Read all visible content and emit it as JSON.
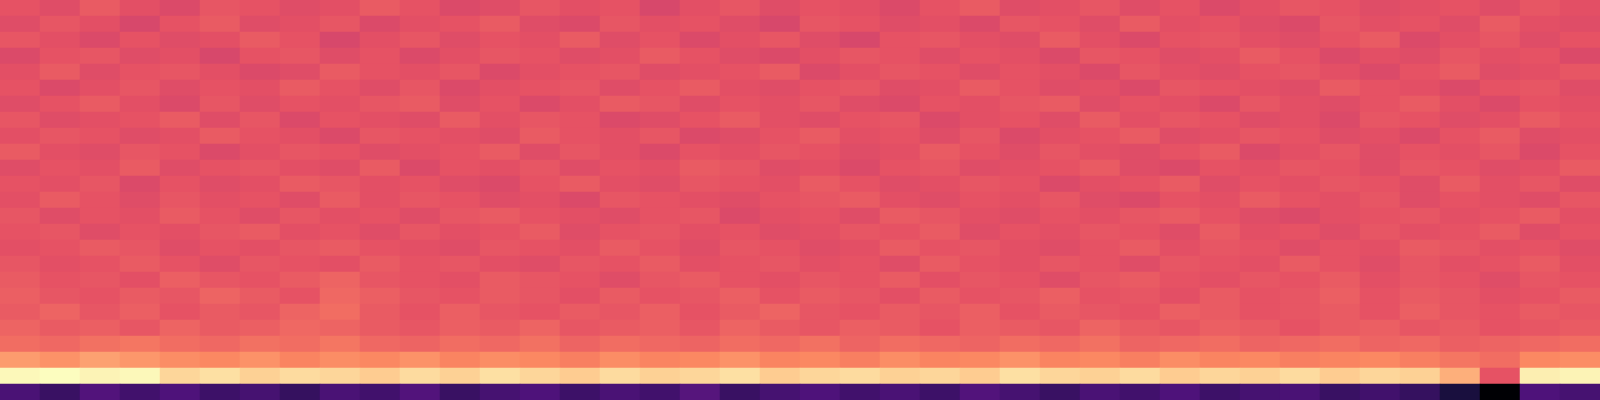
{
  "chart_data": {
    "type": "heatmap",
    "tick_labels": false,
    "cells": [
      [
        0.62,
        0.6,
        0.64,
        0.61,
        0.59,
        0.63,
        0.62,
        0.6,
        0.61,
        0.64,
        0.62,
        0.59,
        0.6,
        0.63,
        0.61,
        0.62,
        0.58,
        0.61,
        0.63,
        0.6,
        0.62,
        0.61,
        0.59,
        0.62,
        0.64,
        0.6,
        0.61,
        0.63,
        0.6,
        0.62,
        0.59,
        0.61,
        0.63,
        0.62,
        0.6,
        0.61,
        0.62,
        0.6,
        0.63,
        0.61
      ],
      [
        0.6,
        0.63,
        0.61,
        0.58,
        0.62,
        0.64,
        0.6,
        0.61,
        0.63,
        0.59,
        0.61,
        0.62,
        0.64,
        0.6,
        0.59,
        0.63,
        0.61,
        0.62,
        0.6,
        0.58,
        0.63,
        0.62,
        0.6,
        0.61,
        0.59,
        0.63,
        0.62,
        0.6,
        0.64,
        0.61,
        0.62,
        0.6,
        0.59,
        0.63,
        0.61,
        0.62,
        0.6,
        0.64,
        0.61,
        0.6
      ],
      [
        0.63,
        0.61,
        0.59,
        0.62,
        0.6,
        0.61,
        0.64,
        0.62,
        0.58,
        0.61,
        0.63,
        0.6,
        0.62,
        0.61,
        0.64,
        0.6,
        0.62,
        0.59,
        0.61,
        0.63,
        0.6,
        0.58,
        0.62,
        0.63,
        0.61,
        0.6,
        0.64,
        0.61,
        0.59,
        0.62,
        0.63,
        0.61,
        0.6,
        0.62,
        0.64,
        0.59,
        0.61,
        0.63,
        0.6,
        0.62
      ],
      [
        0.59,
        0.62,
        0.63,
        0.6,
        0.61,
        0.58,
        0.62,
        0.63,
        0.6,
        0.62,
        0.59,
        0.61,
        0.63,
        0.62,
        0.6,
        0.61,
        0.64,
        0.62,
        0.6,
        0.59,
        0.61,
        0.63,
        0.62,
        0.6,
        0.62,
        0.61,
        0.59,
        0.63,
        0.62,
        0.6,
        0.61,
        0.64,
        0.62,
        0.59,
        0.61,
        0.6,
        0.63,
        0.61,
        0.62,
        0.59
      ],
      [
        0.61,
        0.64,
        0.6,
        0.62,
        0.63,
        0.61,
        0.59,
        0.6,
        0.64,
        0.62,
        0.61,
        0.63,
        0.59,
        0.61,
        0.62,
        0.63,
        0.6,
        0.61,
        0.62,
        0.64,
        0.59,
        0.61,
        0.63,
        0.62,
        0.6,
        0.62,
        0.61,
        0.59,
        0.63,
        0.61,
        0.6,
        0.62,
        0.63,
        0.61,
        0.59,
        0.62,
        0.64,
        0.6,
        0.61,
        0.63
      ],
      [
        0.62,
        0.59,
        0.61,
        0.63,
        0.6,
        0.62,
        0.61,
        0.64,
        0.62,
        0.6,
        0.63,
        0.59,
        0.61,
        0.62,
        0.63,
        0.6,
        0.62,
        0.64,
        0.61,
        0.6,
        0.62,
        0.63,
        0.6,
        0.61,
        0.64,
        0.62,
        0.6,
        0.61,
        0.59,
        0.63,
        0.62,
        0.61,
        0.6,
        0.64,
        0.62,
        0.61,
        0.59,
        0.62,
        0.63,
        0.6
      ],
      [
        0.6,
        0.62,
        0.64,
        0.61,
        0.59,
        0.63,
        0.6,
        0.62,
        0.61,
        0.63,
        0.64,
        0.6,
        0.62,
        0.59,
        0.61,
        0.64,
        0.63,
        0.6,
        0.62,
        0.61,
        0.63,
        0.6,
        0.59,
        0.62,
        0.61,
        0.63,
        0.64,
        0.6,
        0.62,
        0.61,
        0.59,
        0.63,
        0.61,
        0.6,
        0.62,
        0.64,
        0.61,
        0.59,
        0.62,
        0.61
      ],
      [
        0.63,
        0.6,
        0.61,
        0.62,
        0.64,
        0.6,
        0.63,
        0.59,
        0.62,
        0.61,
        0.6,
        0.64,
        0.61,
        0.63,
        0.62,
        0.59,
        0.6,
        0.62,
        0.64,
        0.61,
        0.6,
        0.62,
        0.63,
        0.59,
        0.61,
        0.62,
        0.6,
        0.64,
        0.61,
        0.63,
        0.62,
        0.6,
        0.61,
        0.59,
        0.63,
        0.62,
        0.6,
        0.61,
        0.64,
        0.62
      ],
      [
        0.61,
        0.63,
        0.62,
        0.6,
        0.61,
        0.64,
        0.62,
        0.61,
        0.59,
        0.63,
        0.62,
        0.61,
        0.6,
        0.64,
        0.62,
        0.61,
        0.63,
        0.59,
        0.6,
        0.62,
        0.64,
        0.61,
        0.62,
        0.6,
        0.63,
        0.59,
        0.61,
        0.62,
        0.64,
        0.6,
        0.61,
        0.63,
        0.62,
        0.6,
        0.61,
        0.59,
        0.62,
        0.64,
        0.6,
        0.61
      ],
      [
        0.64,
        0.61,
        0.6,
        0.63,
        0.62,
        0.59,
        0.61,
        0.63,
        0.62,
        0.6,
        0.61,
        0.62,
        0.64,
        0.6,
        0.63,
        0.61,
        0.59,
        0.62,
        0.61,
        0.63,
        0.62,
        0.6,
        0.61,
        0.64,
        0.62,
        0.6,
        0.63,
        0.61,
        0.6,
        0.62,
        0.64,
        0.59,
        0.61,
        0.63,
        0.6,
        0.62,
        0.61,
        0.63,
        0.59,
        0.62
      ],
      [
        0.6,
        0.62,
        0.61,
        0.64,
        0.6,
        0.62,
        0.63,
        0.61,
        0.6,
        0.64,
        0.59,
        0.62,
        0.61,
        0.63,
        0.6,
        0.62,
        0.61,
        0.64,
        0.63,
        0.6,
        0.61,
        0.59,
        0.62,
        0.63,
        0.6,
        0.61,
        0.62,
        0.64,
        0.6,
        0.59,
        0.62,
        0.61,
        0.63,
        0.62,
        0.6,
        0.63,
        0.62,
        0.6,
        0.61,
        0.64
      ],
      [
        0.62,
        0.61,
        0.63,
        0.59,
        0.62,
        0.6,
        0.61,
        0.64,
        0.63,
        0.61,
        0.62,
        0.6,
        0.59,
        0.62,
        0.64,
        0.61,
        0.6,
        0.63,
        0.62,
        0.61,
        0.64,
        0.62,
        0.6,
        0.61,
        0.63,
        0.62,
        0.59,
        0.61,
        0.62,
        0.64,
        0.6,
        0.62,
        0.61,
        0.63,
        0.62,
        0.6,
        0.64,
        0.61,
        0.63,
        0.6
      ],
      [
        0.61,
        0.64,
        0.62,
        0.6,
        0.63,
        0.61,
        0.62,
        0.6,
        0.64,
        0.61,
        0.63,
        0.62,
        0.6,
        0.61,
        0.59,
        0.63,
        0.62,
        0.61,
        0.6,
        0.62,
        0.63,
        0.64,
        0.61,
        0.6,
        0.62,
        0.61,
        0.63,
        0.6,
        0.59,
        0.62,
        0.61,
        0.64,
        0.62,
        0.61,
        0.63,
        0.6,
        0.62,
        0.61,
        0.6,
        0.63
      ],
      [
        0.63,
        0.6,
        0.62,
        0.61,
        0.64,
        0.62,
        0.6,
        0.63,
        0.61,
        0.62,
        0.6,
        0.63,
        0.64,
        0.62,
        0.61,
        0.6,
        0.62,
        0.63,
        0.59,
        0.61,
        0.62,
        0.6,
        0.64,
        0.63,
        0.61,
        0.6,
        0.62,
        0.61,
        0.63,
        0.64,
        0.62,
        0.6,
        0.59,
        0.61,
        0.62,
        0.63,
        0.61,
        0.62,
        0.64,
        0.61
      ],
      [
        0.62,
        0.63,
        0.6,
        0.62,
        0.61,
        0.63,
        0.64,
        0.61,
        0.62,
        0.6,
        0.63,
        0.61,
        0.62,
        0.64,
        0.6,
        0.62,
        0.63,
        0.61,
        0.62,
        0.6,
        0.61,
        0.63,
        0.62,
        0.64,
        0.6,
        0.62,
        0.61,
        0.63,
        0.62,
        0.6,
        0.64,
        0.61,
        0.62,
        0.6,
        0.63,
        0.61,
        0.62,
        0.64,
        0.6,
        0.62
      ],
      [
        0.61,
        0.62,
        0.64,
        0.63,
        0.6,
        0.62,
        0.61,
        0.63,
        0.64,
        0.62,
        0.61,
        0.6,
        0.63,
        0.62,
        0.61,
        0.64,
        0.62,
        0.6,
        0.63,
        0.62,
        0.6,
        0.61,
        0.64,
        0.62,
        0.63,
        0.61,
        0.6,
        0.62,
        0.64,
        0.61,
        0.63,
        0.62,
        0.6,
        0.62,
        0.61,
        0.64,
        0.63,
        0.61,
        0.62,
        0.6
      ],
      [
        0.63,
        0.61,
        0.62,
        0.64,
        0.62,
        0.6,
        0.63,
        0.62,
        0.61,
        0.64,
        0.62,
        0.63,
        0.61,
        0.6,
        0.63,
        0.62,
        0.64,
        0.61,
        0.62,
        0.63,
        0.61,
        0.62,
        0.6,
        0.64,
        0.62,
        0.61,
        0.63,
        0.62,
        0.6,
        0.63,
        0.62,
        0.61,
        0.64,
        0.62,
        0.6,
        0.63,
        0.61,
        0.62,
        0.64,
        0.61
      ],
      [
        0.64,
        0.62,
        0.63,
        0.61,
        0.65,
        0.63,
        0.62,
        0.64,
        0.66,
        0.63,
        0.62,
        0.61,
        0.64,
        0.63,
        0.62,
        0.6,
        0.63,
        0.64,
        0.62,
        0.61,
        0.63,
        0.62,
        0.64,
        0.61,
        0.63,
        0.62,
        0.6,
        0.63,
        0.64,
        0.62,
        0.61,
        0.63,
        0.62,
        0.64,
        0.61,
        0.63,
        0.62,
        0.6,
        0.63,
        0.62
      ],
      [
        0.65,
        0.63,
        0.62,
        0.64,
        0.63,
        0.66,
        0.64,
        0.62,
        0.67,
        0.65,
        0.63,
        0.62,
        0.64,
        0.63,
        0.61,
        0.64,
        0.62,
        0.63,
        0.65,
        0.62,
        0.64,
        0.63,
        0.61,
        0.64,
        0.62,
        0.63,
        0.65,
        0.62,
        0.63,
        0.61,
        0.64,
        0.62,
        0.63,
        0.65,
        0.62,
        0.64,
        0.63,
        0.61,
        0.62,
        0.64
      ],
      [
        0.64,
        0.66,
        0.63,
        0.65,
        0.62,
        0.64,
        0.63,
        0.66,
        0.68,
        0.64,
        0.62,
        0.65,
        0.63,
        0.62,
        0.64,
        0.63,
        0.65,
        0.62,
        0.64,
        0.66,
        0.63,
        0.62,
        0.64,
        0.63,
        0.65,
        0.62,
        0.64,
        0.63,
        0.62,
        0.65,
        0.64,
        0.62,
        0.63,
        0.64,
        0.62,
        0.65,
        0.63,
        0.62,
        0.64,
        0.63
      ],
      [
        0.66,
        0.64,
        0.65,
        0.63,
        0.66,
        0.64,
        0.65,
        0.67,
        0.66,
        0.64,
        0.63,
        0.65,
        0.64,
        0.66,
        0.63,
        0.64,
        0.65,
        0.63,
        0.66,
        0.64,
        0.63,
        0.65,
        0.64,
        0.62,
        0.65,
        0.64,
        0.63,
        0.66,
        0.64,
        0.63,
        0.65,
        0.64,
        0.62,
        0.64,
        0.65,
        0.63,
        0.64,
        0.62,
        0.63,
        0.64
      ],
      [
        0.68,
        0.67,
        0.69,
        0.7,
        0.68,
        0.67,
        0.69,
        0.68,
        0.7,
        0.67,
        0.66,
        0.68,
        0.67,
        0.69,
        0.66,
        0.68,
        0.67,
        0.66,
        0.68,
        0.67,
        0.69,
        0.66,
        0.68,
        0.67,
        0.66,
        0.68,
        0.67,
        0.69,
        0.66,
        0.67,
        0.68,
        0.66,
        0.67,
        0.68,
        0.66,
        0.67,
        0.65,
        0.66,
        0.67,
        0.68
      ],
      [
        0.78,
        0.76,
        0.79,
        0.77,
        0.75,
        0.74,
        0.76,
        0.73,
        0.75,
        0.74,
        0.76,
        0.73,
        0.75,
        0.74,
        0.72,
        0.75,
        0.73,
        0.74,
        0.76,
        0.73,
        0.74,
        0.72,
        0.75,
        0.73,
        0.74,
        0.76,
        0.73,
        0.74,
        0.72,
        0.75,
        0.73,
        0.74,
        0.72,
        0.73,
        0.74,
        0.72,
        0.7,
        0.68,
        0.74,
        0.75
      ],
      [
        0.97,
        0.98,
        0.96,
        0.97,
        0.9,
        0.92,
        0.89,
        0.91,
        0.9,
        0.88,
        0.91,
        0.89,
        0.92,
        0.9,
        0.88,
        0.91,
        0.89,
        0.9,
        0.92,
        0.88,
        0.9,
        0.91,
        0.89,
        0.9,
        0.88,
        0.92,
        0.9,
        0.89,
        0.91,
        0.88,
        0.9,
        0.89,
        0.91,
        0.88,
        0.9,
        0.89,
        0.82,
        0.62,
        0.95,
        0.96
      ],
      [
        0.24,
        0.2,
        0.26,
        0.22,
        0.25,
        0.21,
        0.23,
        0.19,
        0.24,
        0.22,
        0.26,
        0.2,
        0.23,
        0.25,
        0.21,
        0.24,
        0.22,
        0.27,
        0.2,
        0.23,
        0.25,
        0.22,
        0.24,
        0.21,
        0.26,
        0.23,
        0.2,
        0.24,
        0.22,
        0.25,
        0.21,
        0.23,
        0.24,
        0.2,
        0.22,
        0.19,
        0.12,
        0.01,
        0.25,
        0.23
      ]
    ]
  }
}
